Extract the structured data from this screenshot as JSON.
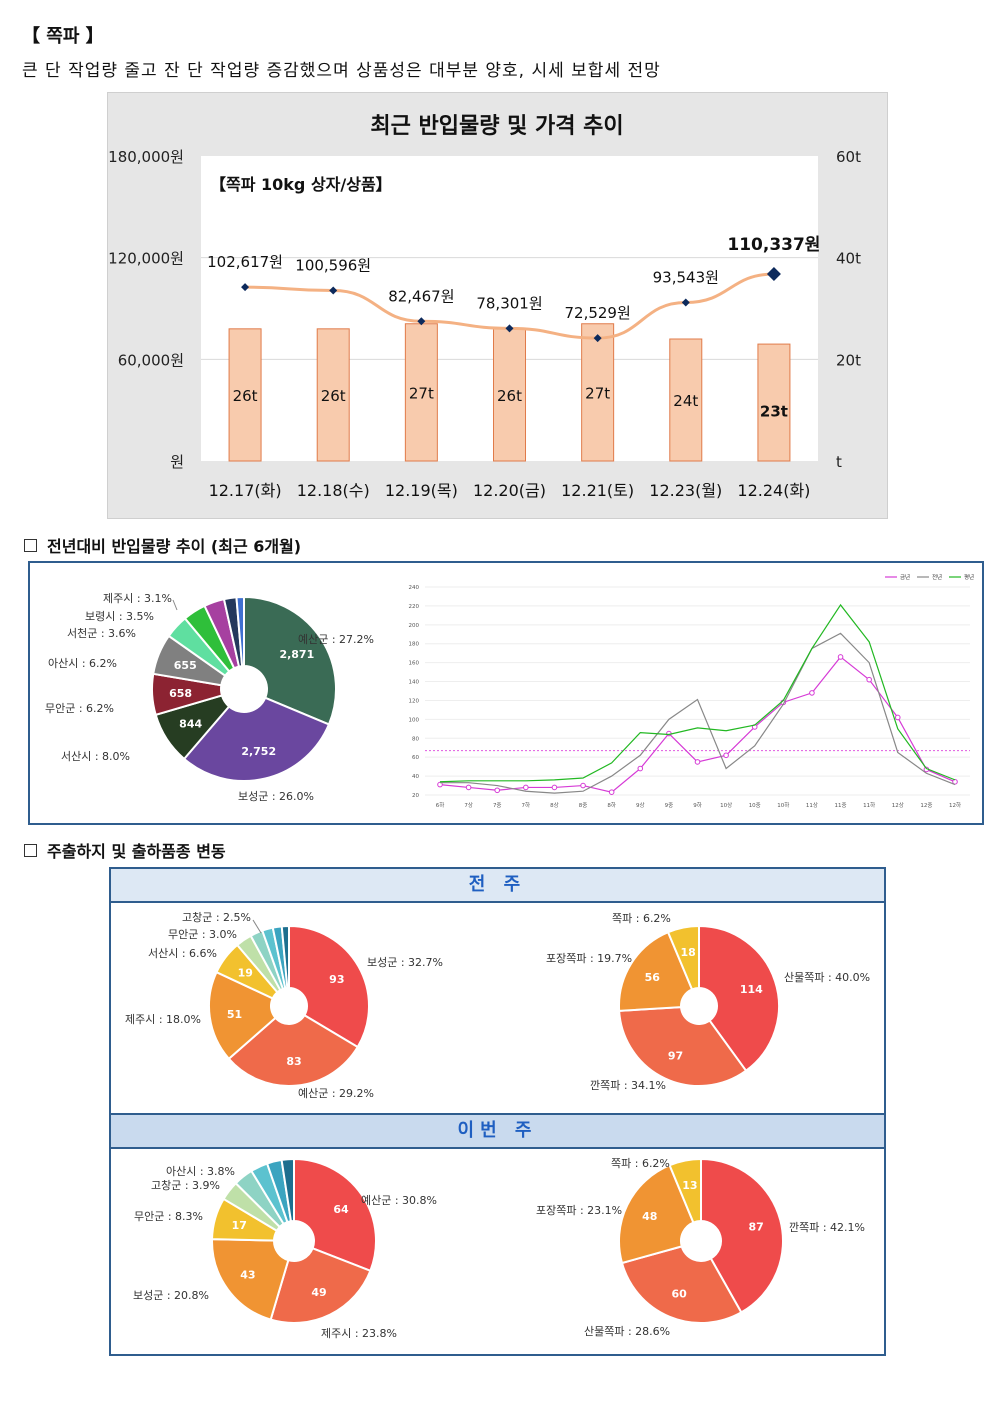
{
  "header": {
    "title": "【 쪽파 】",
    "description": "큰 단 작업량 줄고 잔 단 작업량 증감했으며 상품성은 대부분 양호, 시세 보합세 전망"
  },
  "main_chart": {
    "title": "최근 반입물량 및 가격 추이",
    "subtitle": "【쪽파 10kg 상자/상품】",
    "left_ticks": [
      "180,000원",
      "120,000원",
      "60,000원",
      "원"
    ],
    "right_ticks": [
      "60t",
      "40t",
      "20t",
      "t"
    ],
    "chart_data": {
      "type": "bar",
      "categories": [
        "12.17(화)",
        "12.18(수)",
        "12.19(목)",
        "12.20(금)",
        "12.21(토)",
        "12.23(월)",
        "12.24(화)"
      ],
      "series": [
        {
          "values": [
            26,
            26,
            27,
            26,
            27,
            24,
            23
          ],
          "labels": [
            "26t",
            "26t",
            "27t",
            "26t",
            "27t",
            "24t",
            "23t"
          ],
          "axis": "right"
        },
        {
          "values": [
            102617,
            100596,
            82467,
            78301,
            72529,
            93543,
            110337
          ],
          "labels": [
            "102,617원",
            "100,596원",
            "82,467원",
            "78,301원",
            "72,529원",
            "93,543원",
            "110,337원"
          ],
          "axis": "left",
          "type": "line"
        }
      ],
      "ylim_left": [
        0,
        180000
      ],
      "ylim_right": [
        0,
        60
      ],
      "colors": {
        "bar": "#f8cbad",
        "bar_border": "#e07b4a",
        "line": "#f4b183",
        "marker": "#0d2a5c"
      }
    }
  },
  "section1": {
    "title": "전년대비 반입물량 추이 (최근 6개월)",
    "pie": {
      "chart_data": {
        "type": "pie",
        "categories": [
          "예산군 : 27.2%",
          "보성군 : 26.0%",
          "서산시 : 8.0%",
          "무안군 : 6.2%",
          "아산시 : 6.2%",
          "서천군 : 3.6%",
          "보령시 : 3.5%",
          "제주시 : 3.1%",
          "",
          ""
        ],
        "values": [
          2871,
          2752,
          844,
          658,
          655,
          380,
          370,
          327,
          200,
          120
        ],
        "inner_labels": [
          "2,871",
          "2,752",
          "844",
          "658",
          "655",
          "",
          "",
          "",
          "",
          ""
        ],
        "colors": [
          "#3a6b55",
          "#6a479f",
          "#263d22",
          "#8c2332",
          "#808080",
          "#5fdfa0",
          "#2fbf3a",
          "#a640a0",
          "#24385c",
          "#3f6fd0"
        ]
      }
    },
    "line": {
      "legend": [
        "금년",
        "전년",
        "평년"
      ],
      "chart_data": {
        "type": "line",
        "categories": [
          "6하",
          "7상",
          "7중",
          "7하",
          "8상",
          "8중",
          "8하",
          "9상",
          "9중",
          "9하",
          "10상",
          "10중",
          "10하",
          "11상",
          "11중",
          "11하",
          "12상",
          "12중",
          "12하"
        ],
        "yticks": [
          "20",
          "40",
          "60",
          "80",
          "100",
          "120",
          "140",
          "160",
          "180",
          "200",
          "220",
          "240"
        ],
        "ylim": [
          20,
          240
        ],
        "series": [
          {
            "name": "금년",
            "values": [
              31,
              28,
              25,
              28,
              28,
              30,
              23,
              48,
              85,
              55,
              62,
              92,
              118,
              128,
              166,
              142,
              102,
              47,
              34
            ],
            "color": "#d63bd6"
          },
          {
            "name": "전년",
            "values": [
              33,
              33,
              30,
              24,
              22,
              24,
              40,
              62,
              100,
              121,
              48,
              72,
              116,
              175,
              191,
              160,
              65,
              43,
              31
            ],
            "color": "#888888"
          },
          {
            "name": "평년",
            "values": [
              34,
              35,
              35,
              35,
              36,
              38,
              54,
              86,
              84,
              91,
              88,
              94,
              120,
              175,
              221,
              182,
              90,
              48,
              36
            ],
            "color": "#22b822"
          }
        ],
        "reference_line": 67
      }
    }
  },
  "section2": {
    "title": "주출하지 및 출하품종 변동",
    "prev_week": {
      "label": "전 주",
      "region_pie": {
        "chart_data": {
          "type": "pie",
          "categories": [
            "보성군 : 32.7%",
            "예산군 : 29.2%",
            "제주시 : 18.0%",
            "서산시 : 6.6%",
            "무안군 : 3.0%",
            "고창군 : 2.5%",
            "",
            "",
            ""
          ],
          "values": [
            93,
            83,
            51,
            19,
            9,
            7,
            6,
            5,
            4
          ],
          "inner_labels": [
            "93",
            "83",
            "51",
            "19",
            "",
            "",
            "",
            "",
            ""
          ],
          "colors": [
            "#ef4b4b",
            "#ef6a4a",
            "#f09433",
            "#f2c12e",
            "#bfe0a8",
            "#8ed3c4",
            "#5cc2cf",
            "#3ba4c0",
            "#1d6f8f"
          ]
        }
      },
      "variety_pie": {
        "chart_data": {
          "type": "pie",
          "categories": [
            "산물쪽파 : 40.0%",
            "깐쪽파 : 34.1%",
            "포장쪽파 : 19.7%",
            "쪽파 : 6.2%"
          ],
          "values": [
            114,
            97,
            56,
            18
          ],
          "inner_labels": [
            "114",
            "97",
            "56",
            "18"
          ],
          "colors": [
            "#ef4b4b",
            "#ef6a4a",
            "#f09433",
            "#f2c12e"
          ]
        }
      }
    },
    "this_week": {
      "label": "이번 주",
      "region_pie": {
        "chart_data": {
          "type": "pie",
          "categories": [
            "예산군 : 30.8%",
            "제주시 : 23.8%",
            "보성군 : 20.8%",
            "무안군 : 8.3%",
            "고창군 : 3.9%",
            "아산시 : 3.8%",
            "",
            "",
            ""
          ],
          "values": [
            64,
            49,
            43,
            17,
            8,
            8,
            7,
            6,
            5
          ],
          "inner_labels": [
            "64",
            "49",
            "43",
            "17",
            "",
            "",
            "",
            "",
            ""
          ],
          "colors": [
            "#ef4b4b",
            "#ef6a4a",
            "#f09433",
            "#f2c12e",
            "#bfe0a8",
            "#8ed3c4",
            "#5cc2cf",
            "#3ba4c0",
            "#1d6f8f"
          ]
        }
      },
      "variety_pie": {
        "chart_data": {
          "type": "pie",
          "categories": [
            "깐쪽파 : 42.1%",
            "산물쪽파 : 28.6%",
            "포장쪽파 : 23.1%",
            "쪽파 : 6.2%"
          ],
          "values": [
            87,
            60,
            48,
            13
          ],
          "inner_labels": [
            "87",
            "60",
            "48",
            "13"
          ],
          "colors": [
            "#ef4b4b",
            "#ef6a4a",
            "#f09433",
            "#f2c12e"
          ]
        }
      }
    }
  }
}
